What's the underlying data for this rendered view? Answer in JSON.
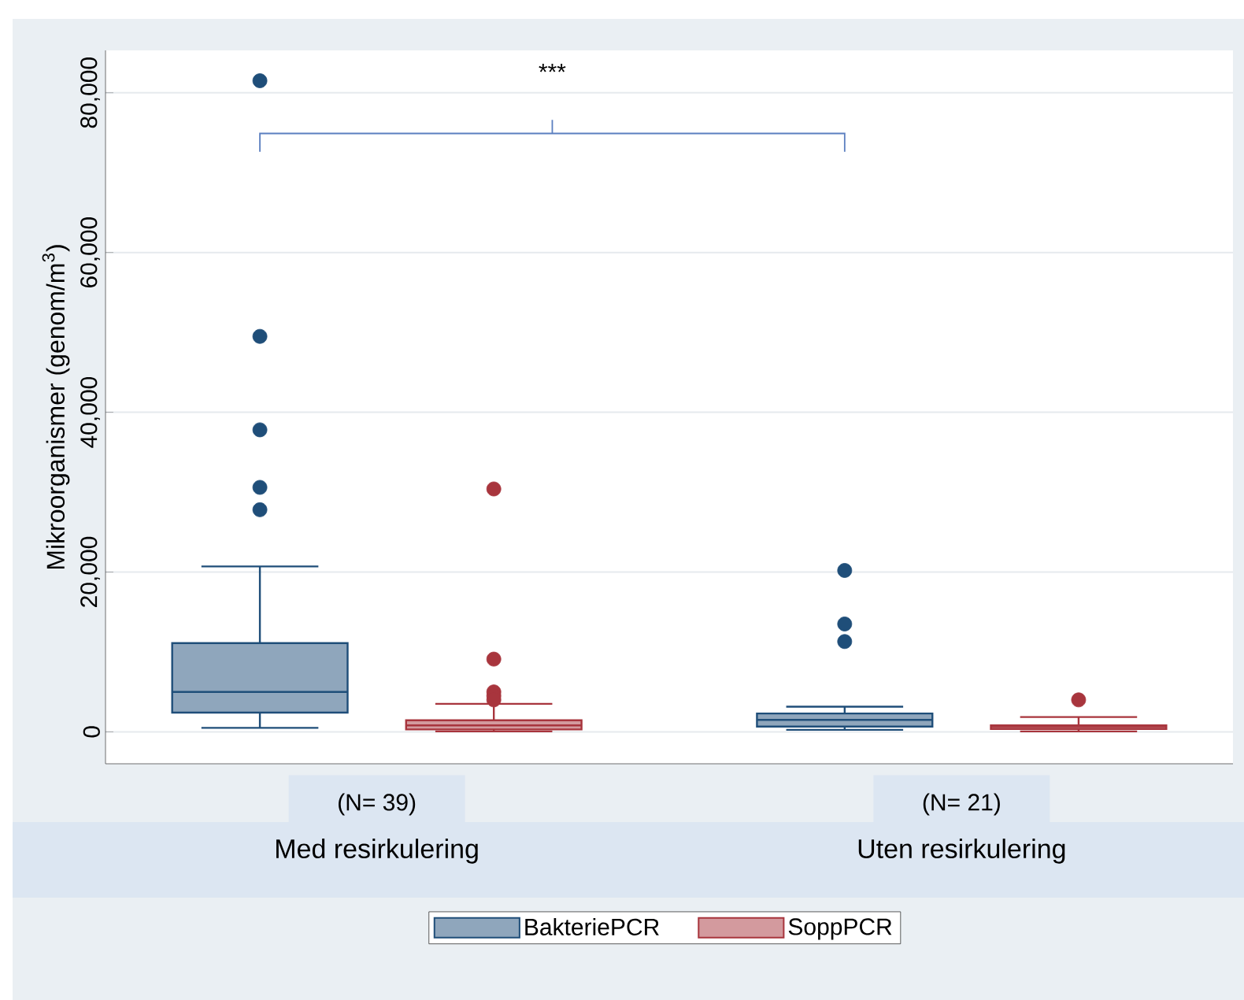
{
  "chart_data": {
    "type": "box",
    "ylabel": "Mikroorganismer (genom/m$^{3}$)",
    "categories": [
      "Med resirkulering",
      "Uten resirkulering"
    ],
    "series": [
      {
        "name": "BakteriePCR",
        "color": "#1f4e79",
        "boxes": [
          {
            "low": 500,
            "q1": 2400,
            "median": 5000,
            "q3": 11100,
            "high": 20700,
            "outliers": [
              81500,
              49500,
              37800,
              30600,
              27800
            ]
          },
          {
            "low": 250,
            "q1": 650,
            "median": 1500,
            "q3": 2300,
            "high": 3150,
            "outliers": [
              20200,
              13500,
              11300
            ]
          }
        ]
      },
      {
        "name": "SoppPCR",
        "color": "#a8353d",
        "boxes": [
          {
            "low": 50,
            "q1": 300,
            "median": 800,
            "q3": 1450,
            "high": 3500,
            "outliers": [
              30400,
              9100,
              5000,
              4500,
              4000
            ]
          },
          {
            "low": 50,
            "q1": 350,
            "median": 600,
            "q3": 800,
            "high": 1850,
            "outliers": [
              4000
            ]
          }
        ]
      }
    ],
    "ylim": [
      -4000,
      85300
    ],
    "yticks": [
      0,
      {
        "value": 20000,
        "label": "20,000"
      },
      {
        "value": 40000,
        "label": "40,000"
      },
      {
        "value": 60000,
        "label": "60,000"
      },
      {
        "value": 80000,
        "label": "80,000"
      }
    ],
    "grid": "y",
    "legend": "bottom",
    "annotations": [
      "***",
      "(N= 39)",
      "(N= 21)"
    ]
  }
}
